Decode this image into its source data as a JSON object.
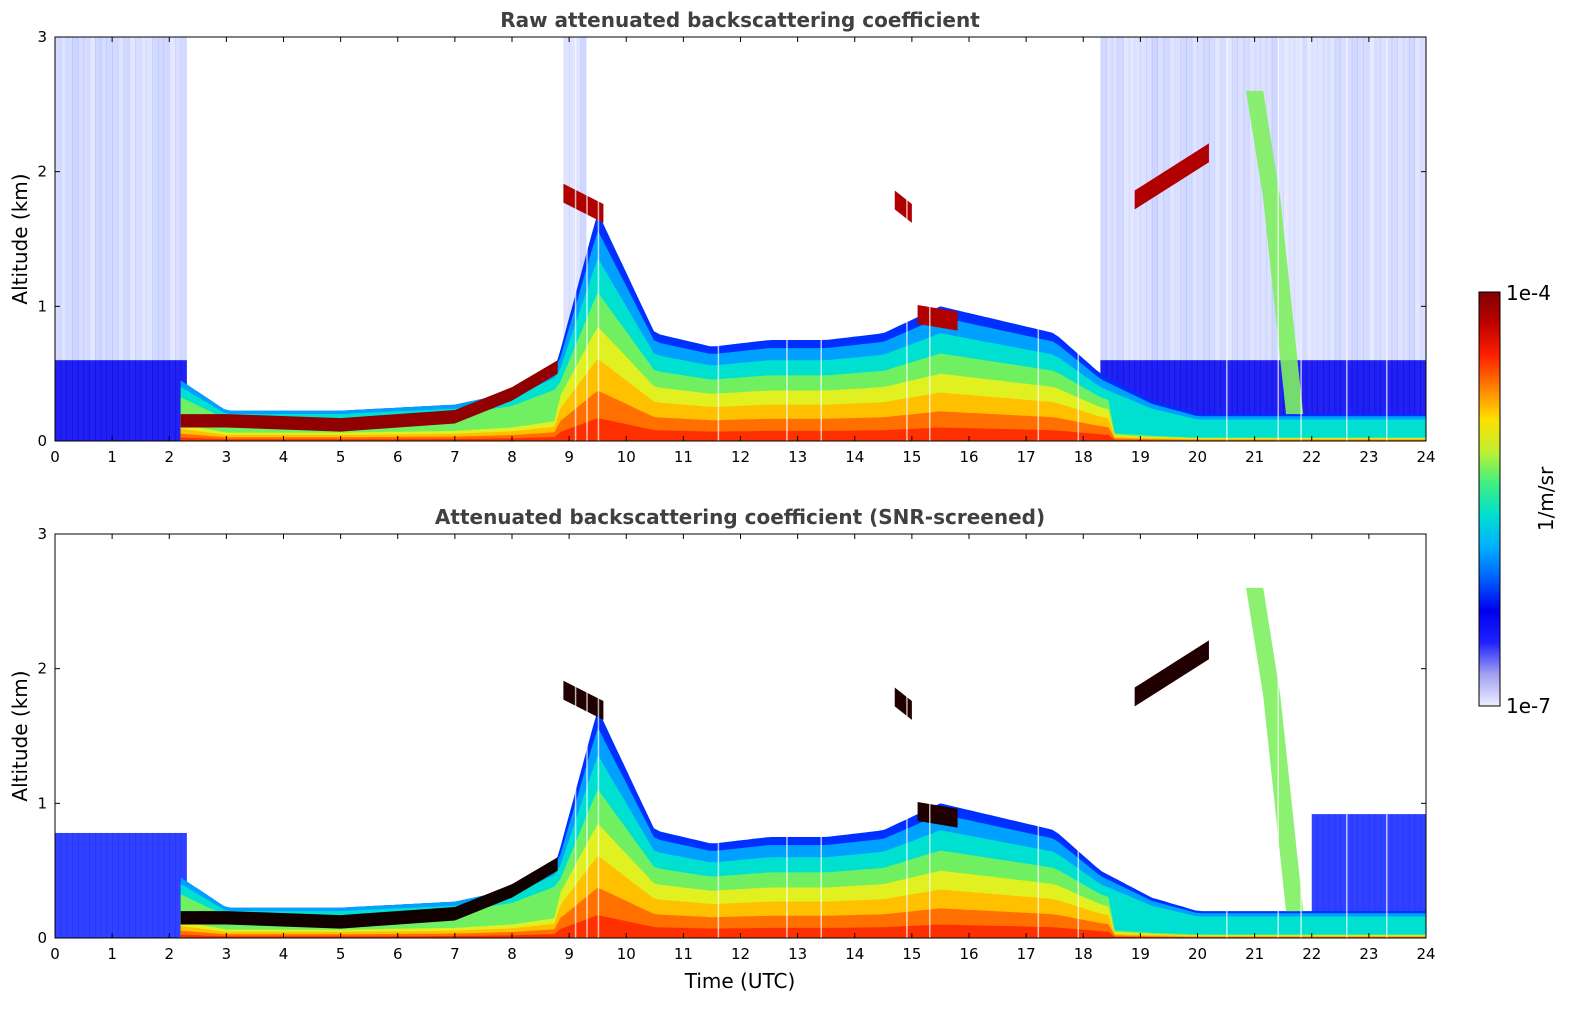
{
  "chart_data": [
    {
      "type": "heatmap",
      "title": "Raw attenuated backscattering coefficient",
      "xlabel": "",
      "ylabel": "Altitude (km)",
      "xlim": [
        0,
        24
      ],
      "ylim": [
        0,
        3
      ],
      "x_ticks": [
        "0",
        "1",
        "2",
        "3",
        "4",
        "5",
        "6",
        "7",
        "8",
        "9",
        "10",
        "11",
        "12",
        "13",
        "14",
        "15",
        "16",
        "17",
        "18",
        "19",
        "20",
        "21",
        "22",
        "23",
        "24"
      ],
      "y_ticks": [
        "0",
        "1",
        "2",
        "3"
      ],
      "features": [
        {
          "kind": "boundary_layer_top_km",
          "x": [
            0.0,
            2.2,
            3.0,
            5.0,
            7.0,
            8.0,
            8.8,
            9.5,
            10.5,
            11.5,
            12.5,
            13.5,
            14.5,
            15.5,
            16.5,
            17.5,
            18.3,
            19.2,
            20.0,
            21.0,
            22.0,
            24.0
          ],
          "y": [
            0.5,
            0.5,
            0.25,
            0.25,
            0.3,
            0.4,
            0.6,
            1.7,
            0.8,
            0.7,
            0.75,
            0.75,
            0.8,
            1.0,
            0.9,
            0.8,
            0.5,
            0.3,
            0.2,
            0.2,
            0.2,
            0.2
          ]
        },
        {
          "kind": "low_cloud_km",
          "x": [
            2.2,
            3.0,
            5.0,
            7.0,
            8.0,
            8.8
          ],
          "y": [
            0.15,
            0.15,
            0.12,
            0.18,
            0.35,
            0.55
          ]
        },
        {
          "kind": "cloud_top_km",
          "x": [
            8.9,
            9.6,
            14.7,
            15.0,
            15.1,
            15.8,
            18.9,
            19.5,
            20.2
          ],
          "y": [
            1.85,
            1.7,
            1.8,
            1.7,
            0.95,
            0.9,
            1.8,
            1.85,
            2.15
          ]
        },
        {
          "kind": "fallstreak_km",
          "x": [
            21.0,
            21.3,
            21.7
          ],
          "y": [
            2.6,
            1.8,
            0.2
          ]
        }
      ]
    },
    {
      "type": "heatmap",
      "title": "Attenuated backscattering coefficient (SNR-screened)",
      "xlabel": "Time (UTC)",
      "ylabel": "Altitude (km)",
      "xlim": [
        0,
        24
      ],
      "ylim": [
        0,
        3
      ],
      "x_ticks": [
        "0",
        "1",
        "2",
        "3",
        "4",
        "5",
        "6",
        "7",
        "8",
        "9",
        "10",
        "11",
        "12",
        "13",
        "14",
        "15",
        "16",
        "17",
        "18",
        "19",
        "20",
        "21",
        "22",
        "23",
        "24"
      ],
      "y_ticks": [
        "0",
        "1",
        "2",
        "3"
      ]
    }
  ],
  "colorbar": {
    "label": "1/m/sr",
    "min_label": "1e-7",
    "max_label": "1e-4",
    "colors": [
      "#eeeeff",
      "#a0a0f0",
      "#2020ff",
      "#0000ee",
      "#0060ff",
      "#00b0ff",
      "#00e0d0",
      "#40f080",
      "#c0f030",
      "#ffe000",
      "#ff8000",
      "#ff2000",
      "#c00000",
      "#800000"
    ]
  }
}
